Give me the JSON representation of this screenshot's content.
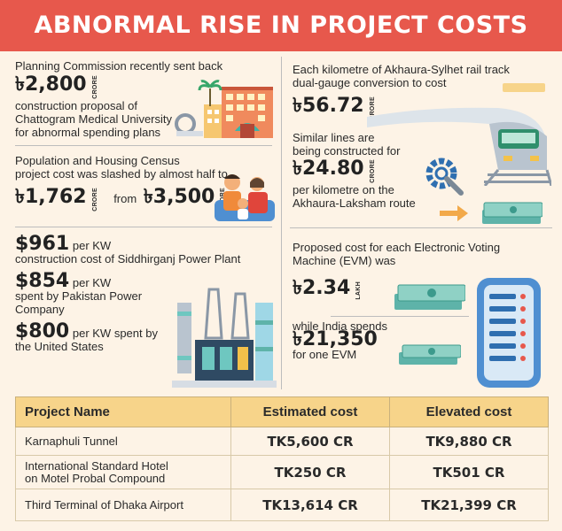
{
  "title": "ABNORMAL RISE IN PROJECT COSTS",
  "currency": "৳",
  "p1": {
    "line1": "Planning Commission recently sent back",
    "amount": "2,800",
    "unit": "CRORE",
    "line2": "construction proposal of",
    "line3": "Chattogram Medical University",
    "line4": "for abnormal spending plans"
  },
  "p2": {
    "line1": "Population and Housing Census",
    "line2": "project cost was slashed by almost half to",
    "amount1": "1,762",
    "unit1": "CRORE",
    "from": "from",
    "amount2": "3,500",
    "unit2": "CRORE"
  },
  "p3": {
    "line1": "Each kilometre of Akhaura-Sylhet rail track",
    "line2": "dual-gauge conversion to cost",
    "amount": "56.72",
    "unit": "CRORE",
    "line3": "Similar lines are",
    "line4": "being constructed for",
    "amount2": "24.80",
    "unit2": "CRORE",
    "line5": "per kilometre on the",
    "line6": "Akhaura-Laksham route"
  },
  "p4": {
    "a1": "$961",
    "a1_suffix": "per KW",
    "a1_line": "construction cost of Siddhirganj Power Plant",
    "a2": "$854",
    "a2_suffix": "per KW",
    "a2_line1": "spent by Pakistan Power",
    "a2_line2": "Company",
    "a3": "$800",
    "a3_suffix": "per KW spent by",
    "a3_line": "the United States"
  },
  "p5": {
    "line1": "Proposed cost for each Electronic Voting",
    "line2": "Machine (EVM) was",
    "amount": "2.34",
    "unit": "LAKH",
    "line3": "while India spends",
    "amount2": "21,350",
    "line4": "for one EVM"
  },
  "table": {
    "headers": [
      "Project Name",
      "Estimated cost",
      "Elevated cost"
    ],
    "rows": [
      {
        "name1": "Karnaphuli Tunnel",
        "name2": "",
        "estimated": "TK5,600 CR",
        "elevated": "TK9,880 CR"
      },
      {
        "name1": "International Standard Hotel",
        "name2": "on Motel Probal Compound",
        "estimated": "TK250 CR",
        "elevated": "TK501 CR"
      },
      {
        "name1": "Third Terminal of Dhaka Airport",
        "name2": "",
        "estimated": "TK13,614 CR",
        "elevated": "TK21,399 CR"
      }
    ]
  },
  "colors": {
    "banner": "#e7584c",
    "background": "#fdf3e6",
    "table_header": "#f7d48a"
  },
  "icons": [
    "hospital-building-icon",
    "palm-tree-icon",
    "gear-wrench-icon",
    "family-icon",
    "train-icon",
    "arrow-right-icon",
    "banknotes-icon",
    "power-plant-icon",
    "evm-machine-icon"
  ]
}
